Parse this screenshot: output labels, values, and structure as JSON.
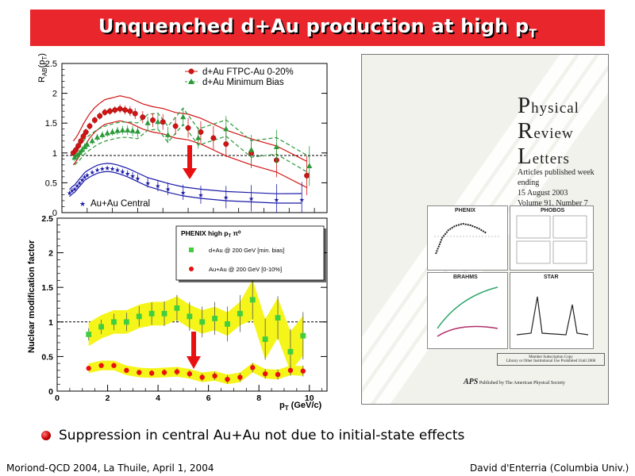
{
  "slide": {
    "title": "Unquenched d+Au production at high p",
    "title_sub": "T",
    "bullet": "Suppression in central Au+Au not due to initial-state effects",
    "footer_left": "Moriond-QCD 2004, La Thuile, April 1, 2004",
    "footer_right": "David d'Enterria (Columbia Univ.)"
  },
  "colors": {
    "title_bar": "#e8262c",
    "star_red": "#d21414",
    "star_green": "#2a9a3a",
    "star_blue": "#1a1aa8",
    "phenix_green": "#3fcf3f",
    "phenix_red": "#e81010",
    "band_yellow": "#f5f51a",
    "arrow_red": "#e81010"
  },
  "chart_data": [
    {
      "type": "scatter",
      "panel": "top",
      "ylabel": "R_AB(p_T)",
      "ylim": [
        0,
        2.5
      ],
      "yticks": [
        "0",
        "0.5",
        "1",
        "1.5",
        "2",
        "2.5"
      ],
      "reference_line": 1,
      "series": [
        {
          "name": "d+Au FTPC-Au 0-20%",
          "marker": "circle",
          "x": [
            0.45,
            0.55,
            0.65,
            0.75,
            0.85,
            0.95,
            1.1,
            1.3,
            1.5,
            1.7,
            1.9,
            2.1,
            2.3,
            2.5,
            2.7,
            2.9,
            3.2,
            3.6,
            4.0,
            4.5,
            5.0,
            5.5,
            6.0,
            6.5,
            7.5,
            8.5,
            9.7
          ],
          "y": [
            1.0,
            1.05,
            1.12,
            1.2,
            1.28,
            1.35,
            1.45,
            1.55,
            1.62,
            1.68,
            1.7,
            1.72,
            1.74,
            1.72,
            1.7,
            1.66,
            1.6,
            1.55,
            1.52,
            1.45,
            1.42,
            1.35,
            1.25,
            1.15,
            1.0,
            0.88,
            0.62
          ]
        },
        {
          "name": "d+Au Minimum Bias",
          "marker": "triangle",
          "x": [
            0.5,
            0.6,
            0.7,
            0.8,
            0.9,
            1.0,
            1.2,
            1.4,
            1.6,
            1.8,
            2.0,
            2.2,
            2.4,
            2.6,
            2.8,
            3.0,
            3.4,
            3.8,
            4.2,
            4.8,
            5.4,
            6.5,
            7.5,
            8.5,
            9.8
          ],
          "y": [
            0.92,
            0.96,
            1.0,
            1.05,
            1.1,
            1.14,
            1.2,
            1.26,
            1.3,
            1.33,
            1.35,
            1.37,
            1.38,
            1.38,
            1.37,
            1.36,
            1.5,
            1.52,
            1.3,
            1.6,
            1.25,
            1.4,
            1.05,
            1.1,
            0.78
          ]
        },
        {
          "name": "Au+Au Central",
          "marker": "star",
          "x": [
            0.3,
            0.4,
            0.5,
            0.6,
            0.7,
            0.8,
            0.9,
            1.0,
            1.2,
            1.4,
            1.6,
            1.8,
            2.0,
            2.2,
            2.4,
            2.6,
            2.8,
            3.0,
            3.4,
            3.8,
            4.2,
            4.8,
            5.5,
            6.5,
            7.5,
            8.5,
            9.5
          ],
          "y": [
            0.33,
            0.37,
            0.4,
            0.45,
            0.5,
            0.55,
            0.6,
            0.63,
            0.68,
            0.72,
            0.74,
            0.75,
            0.74,
            0.72,
            0.69,
            0.66,
            0.62,
            0.58,
            0.5,
            0.45,
            0.4,
            0.34,
            0.3,
            0.26,
            0.24,
            0.22,
            0.22
          ]
        }
      ]
    },
    {
      "type": "scatter",
      "panel": "bottom",
      "title": "PHENIX high p_T π⁰",
      "xlabel": "p_T (GeV/c)",
      "ylabel": "Nuclear modification factor",
      "xlim": [
        0,
        10.7
      ],
      "ylim": [
        0,
        2.5
      ],
      "xticks": [
        "0",
        "2",
        "4",
        "6",
        "8",
        "10"
      ],
      "yticks": [
        "0",
        "0.5",
        "1",
        "1.5",
        "2",
        "2.5"
      ],
      "reference_line": 1,
      "series": [
        {
          "name": "d+Au @ 200 GeV [min. bias]",
          "marker": "square",
          "x": [
            1.25,
            1.75,
            2.25,
            2.75,
            3.25,
            3.75,
            4.25,
            4.75,
            5.25,
            5.75,
            6.25,
            6.75,
            7.25,
            7.75,
            8.25,
            8.75,
            9.25,
            9.75
          ],
          "y": [
            0.82,
            0.93,
            1.0,
            1.0,
            1.08,
            1.12,
            1.12,
            1.2,
            1.08,
            1.0,
            1.05,
            0.97,
            1.12,
            1.32,
            0.75,
            1.06,
            0.57,
            0.8
          ]
        },
        {
          "name": "Au+Au @ 200 GeV [0-10%]",
          "marker": "circle",
          "x": [
            1.25,
            1.75,
            2.25,
            2.75,
            3.25,
            3.75,
            4.25,
            4.75,
            5.25,
            5.75,
            6.25,
            6.75,
            7.25,
            7.75,
            8.25,
            8.75,
            9.25,
            9.75
          ],
          "y": [
            0.33,
            0.37,
            0.37,
            0.3,
            0.27,
            0.26,
            0.27,
            0.28,
            0.25,
            0.2,
            0.22,
            0.17,
            0.2,
            0.34,
            0.25,
            0.24,
            0.3,
            0.29
          ]
        }
      ]
    }
  ],
  "cover": {
    "journal_line1": "Physical",
    "journal_line2": "Review",
    "journal_line3": "Letters",
    "issue_line1": "Articles published week ending",
    "issue_line2": "15 August 2003",
    "issue_line3": "Volume 91, Number 7",
    "panel_phenix": "PHENIX",
    "panel_phobos": "PHOBOS",
    "panel_brahms": "BRAHMS",
    "panel_star": "STAR",
    "notice_line1": "Member Subscription Copy",
    "notice_line2": "Library or Other Institutional Use Prohibited Until 2008",
    "aps_logo": "APS",
    "aps_text": "Published by The American Physical Society"
  }
}
